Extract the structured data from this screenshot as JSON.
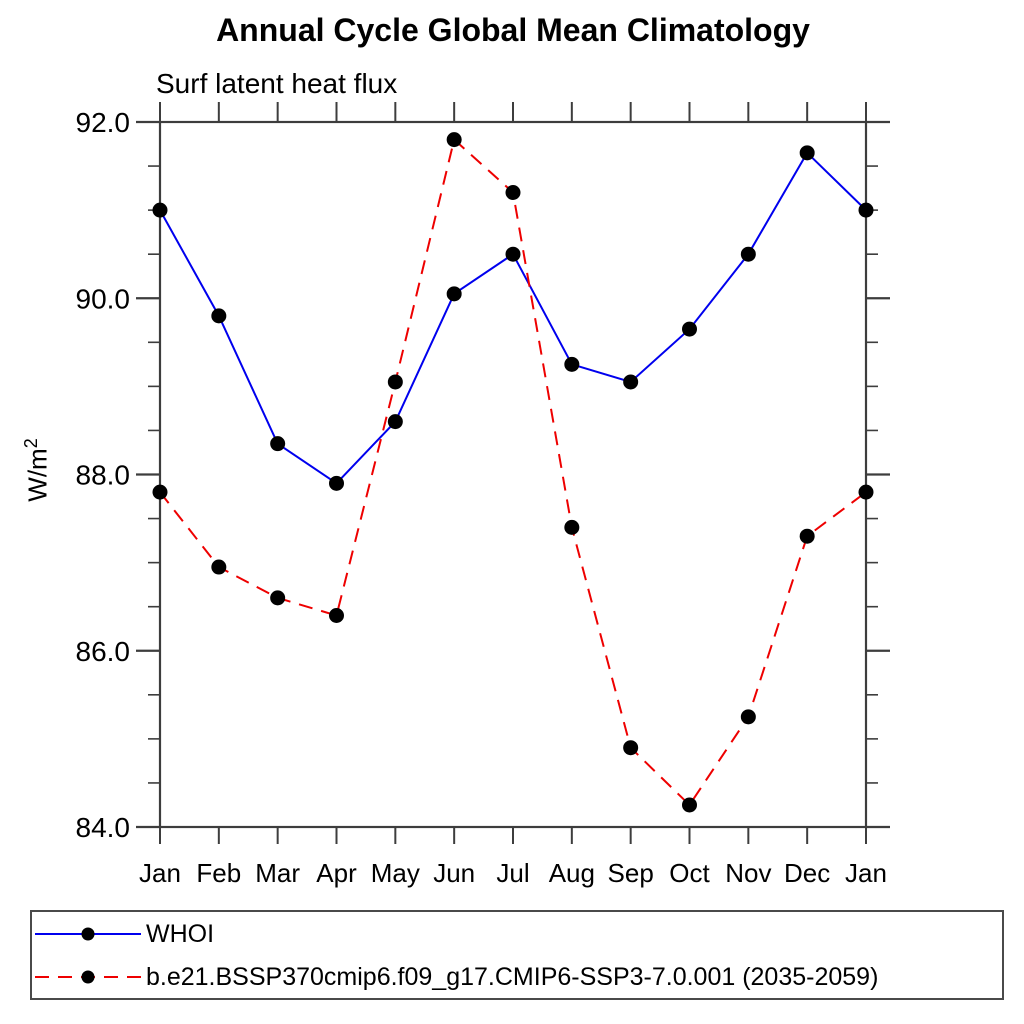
{
  "chart_data": {
    "type": "line",
    "title": "Annual Cycle Global Mean Climatology",
    "subtitle": "Surf latent heat flux",
    "ylabel_base": "W/m",
    "ylabel_exp": "2",
    "categories": [
      "Jan",
      "Feb",
      "Mar",
      "Apr",
      "May",
      "Jun",
      "Jul",
      "Aug",
      "Sep",
      "Oct",
      "Nov",
      "Dec",
      "Jan"
    ],
    "ylim": [
      84.0,
      92.0
    ],
    "yticks_major": [
      84.0,
      86.0,
      88.0,
      90.0,
      92.0
    ],
    "ytick_labels": [
      "84.0",
      "86.0",
      "88.0",
      "90.0",
      "92.0"
    ],
    "yminor_step": 0.5,
    "grid": false,
    "legend_position": "bottom",
    "axis_color": "#3d3d3d",
    "series": [
      {
        "id": "whoi",
        "name": "WHOI",
        "color": "#0000ee",
        "style": "solid",
        "marker": "circle",
        "marker_color": "#000000",
        "values": [
          91.0,
          89.8,
          88.35,
          87.9,
          88.6,
          90.05,
          90.5,
          89.25,
          89.05,
          89.65,
          90.5,
          91.65,
          91.0
        ]
      },
      {
        "id": "ssp370",
        "name": "b.e21.BSSP370cmip6.f09_g17.CMIP6-SSP3-7.0.001 (2035-2059)",
        "color": "#ee0000",
        "style": "dashed",
        "marker": "circle",
        "marker_color": "#000000",
        "values": [
          87.8,
          86.95,
          86.6,
          86.4,
          89.05,
          91.8,
          91.2,
          87.4,
          84.9,
          84.25,
          85.25,
          87.3,
          87.8
        ]
      }
    ]
  }
}
